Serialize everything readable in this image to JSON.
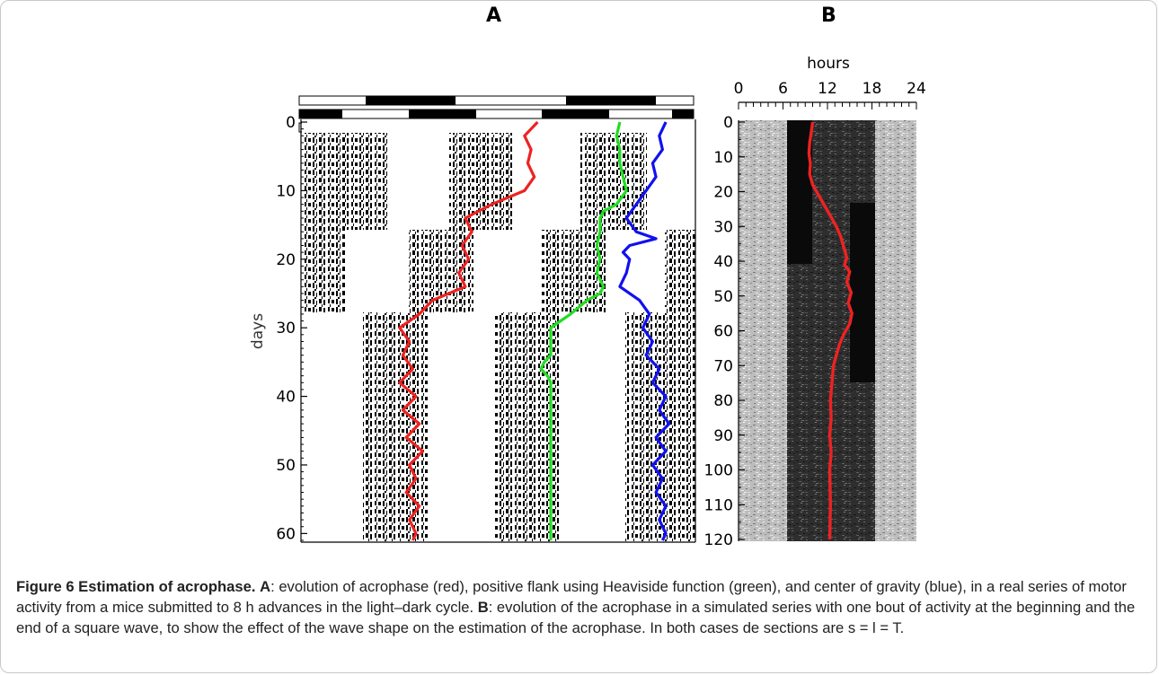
{
  "figure": {
    "panel_a_letter": "A",
    "panel_b_letter": "B",
    "caption": {
      "label": "Figure 6 Estimation of acrophase.",
      "a_letter": "A",
      "a_text": ": evolution of acrophase (red), positive flank using Heaviside function (green), and center of gravity (blue), in a real series of motor activity from a mice submitted to 8 h advances in the light–dark cycle. ",
      "b_letter": "B",
      "b_text": ": evolution of the acrophase in a simulated series with one bout of activity at the beginning and the end of a square wave, to show the effect of the wave shape on the estimation of the acrophase. In both cases de sections are s = l = T."
    }
  },
  "chart_data": [
    {
      "type": "line",
      "panel": "A",
      "ylabel": "days",
      "ylim": [
        0,
        61
      ],
      "y_ticks": [
        0,
        10,
        20,
        30,
        40,
        50,
        60
      ],
      "y_tick_labels": [
        "0",
        "10",
        "20",
        "30",
        "40",
        "50",
        "60"
      ],
      "colors": {
        "acrophase": "#ee2222",
        "positive_flank": "#22dd22",
        "center_of_gravity": "#1111ee"
      },
      "series": [
        {
          "color_key": "acrophase",
          "days": [
            0,
            2,
            4,
            6,
            8,
            10,
            12,
            14,
            16,
            18,
            20,
            22,
            24,
            26,
            28,
            30,
            32,
            34,
            36,
            38,
            40,
            42,
            44,
            46,
            48,
            50,
            52,
            54,
            56,
            58,
            60,
            61
          ],
          "x": [
            0.72,
            0.68,
            0.7,
            0.69,
            0.71,
            0.68,
            0.58,
            0.5,
            0.52,
            0.49,
            0.51,
            0.48,
            0.5,
            0.4,
            0.36,
            0.3,
            0.33,
            0.31,
            0.34,
            0.3,
            0.35,
            0.31,
            0.36,
            0.32,
            0.37,
            0.33,
            0.35,
            0.32,
            0.36,
            0.33,
            0.35,
            0.34
          ]
        },
        {
          "color_key": "positive_flank",
          "days": [
            0,
            2,
            4,
            6,
            8,
            10,
            12,
            13,
            14,
            16,
            18,
            20,
            22,
            24,
            25,
            26,
            28,
            29,
            30,
            32,
            34,
            35,
            36,
            37,
            38,
            40,
            45,
            50,
            55,
            61
          ],
          "x": [
            0.97,
            0.96,
            0.97,
            0.97,
            0.98,
            0.99,
            0.96,
            0.92,
            0.91,
            0.91,
            0.9,
            0.91,
            0.9,
            0.92,
            0.91,
            0.87,
            0.82,
            0.79,
            0.76,
            0.76,
            0.76,
            0.74,
            0.73,
            0.75,
            0.76,
            0.76,
            0.76,
            0.76,
            0.76,
            0.76
          ]
        },
        {
          "color_key": "center_of_gravity",
          "days": [
            0,
            2,
            4,
            6,
            8,
            10,
            12,
            14,
            16,
            17,
            18,
            19,
            20,
            22,
            24,
            26,
            28,
            30,
            32,
            34,
            36,
            38,
            40,
            42,
            44,
            46,
            48,
            50,
            52,
            54,
            56,
            58,
            60,
            61
          ],
          "x": [
            1.11,
            1.09,
            1.1,
            1.07,
            1.08,
            1.05,
            1.02,
            0.99,
            1.02,
            1.08,
            1.0,
            0.98,
            1.0,
            0.99,
            0.97,
            1.03,
            1.06,
            1.04,
            1.07,
            1.05,
            1.09,
            1.07,
            1.11,
            1.09,
            1.12,
            1.08,
            1.11,
            1.07,
            1.1,
            1.08,
            1.11,
            1.09,
            1.11,
            1.1
          ]
        }
      ]
    },
    {
      "type": "line",
      "panel": "B",
      "xlabel": "hours",
      "xlim": [
        0,
        24
      ],
      "x_ticks": [
        0,
        6,
        12,
        18,
        24
      ],
      "x_tick_labels": [
        "0",
        "6",
        "12",
        "18",
        "24"
      ],
      "ylim": [
        0,
        120
      ],
      "y_ticks": [
        0,
        10,
        20,
        30,
        40,
        50,
        60,
        70,
        80,
        90,
        100,
        110,
        120
      ],
      "y_tick_labels": [
        "0",
        "10",
        "20",
        "30",
        "40",
        "50",
        "60",
        "70",
        "80",
        "90",
        "100",
        "110",
        "120"
      ],
      "colors": {
        "acrophase": "#ee2222"
      },
      "series": [
        {
          "color_key": "acrophase",
          "hours": [
            10.0,
            9.8,
            9.6,
            9.5,
            9.7,
            9.6,
            10.0,
            10.8,
            11.6,
            12.4,
            13.2,
            13.8,
            14.2,
            14.6,
            14.3,
            15.0,
            14.6,
            15.2,
            14.8,
            15.3,
            15.0,
            14.2,
            13.6,
            13.2,
            12.8,
            12.6,
            12.4,
            12.5,
            12.3,
            12.5,
            12.3,
            12.4,
            12.3
          ],
          "days": [
            0,
            3,
            6,
            9,
            12,
            15,
            18,
            21,
            24,
            27,
            30,
            33,
            36,
            39,
            41,
            43,
            46,
            49,
            52,
            55,
            58,
            61,
            64,
            67,
            70,
            75,
            80,
            85,
            90,
            95,
            100,
            110,
            120
          ]
        }
      ]
    }
  ]
}
